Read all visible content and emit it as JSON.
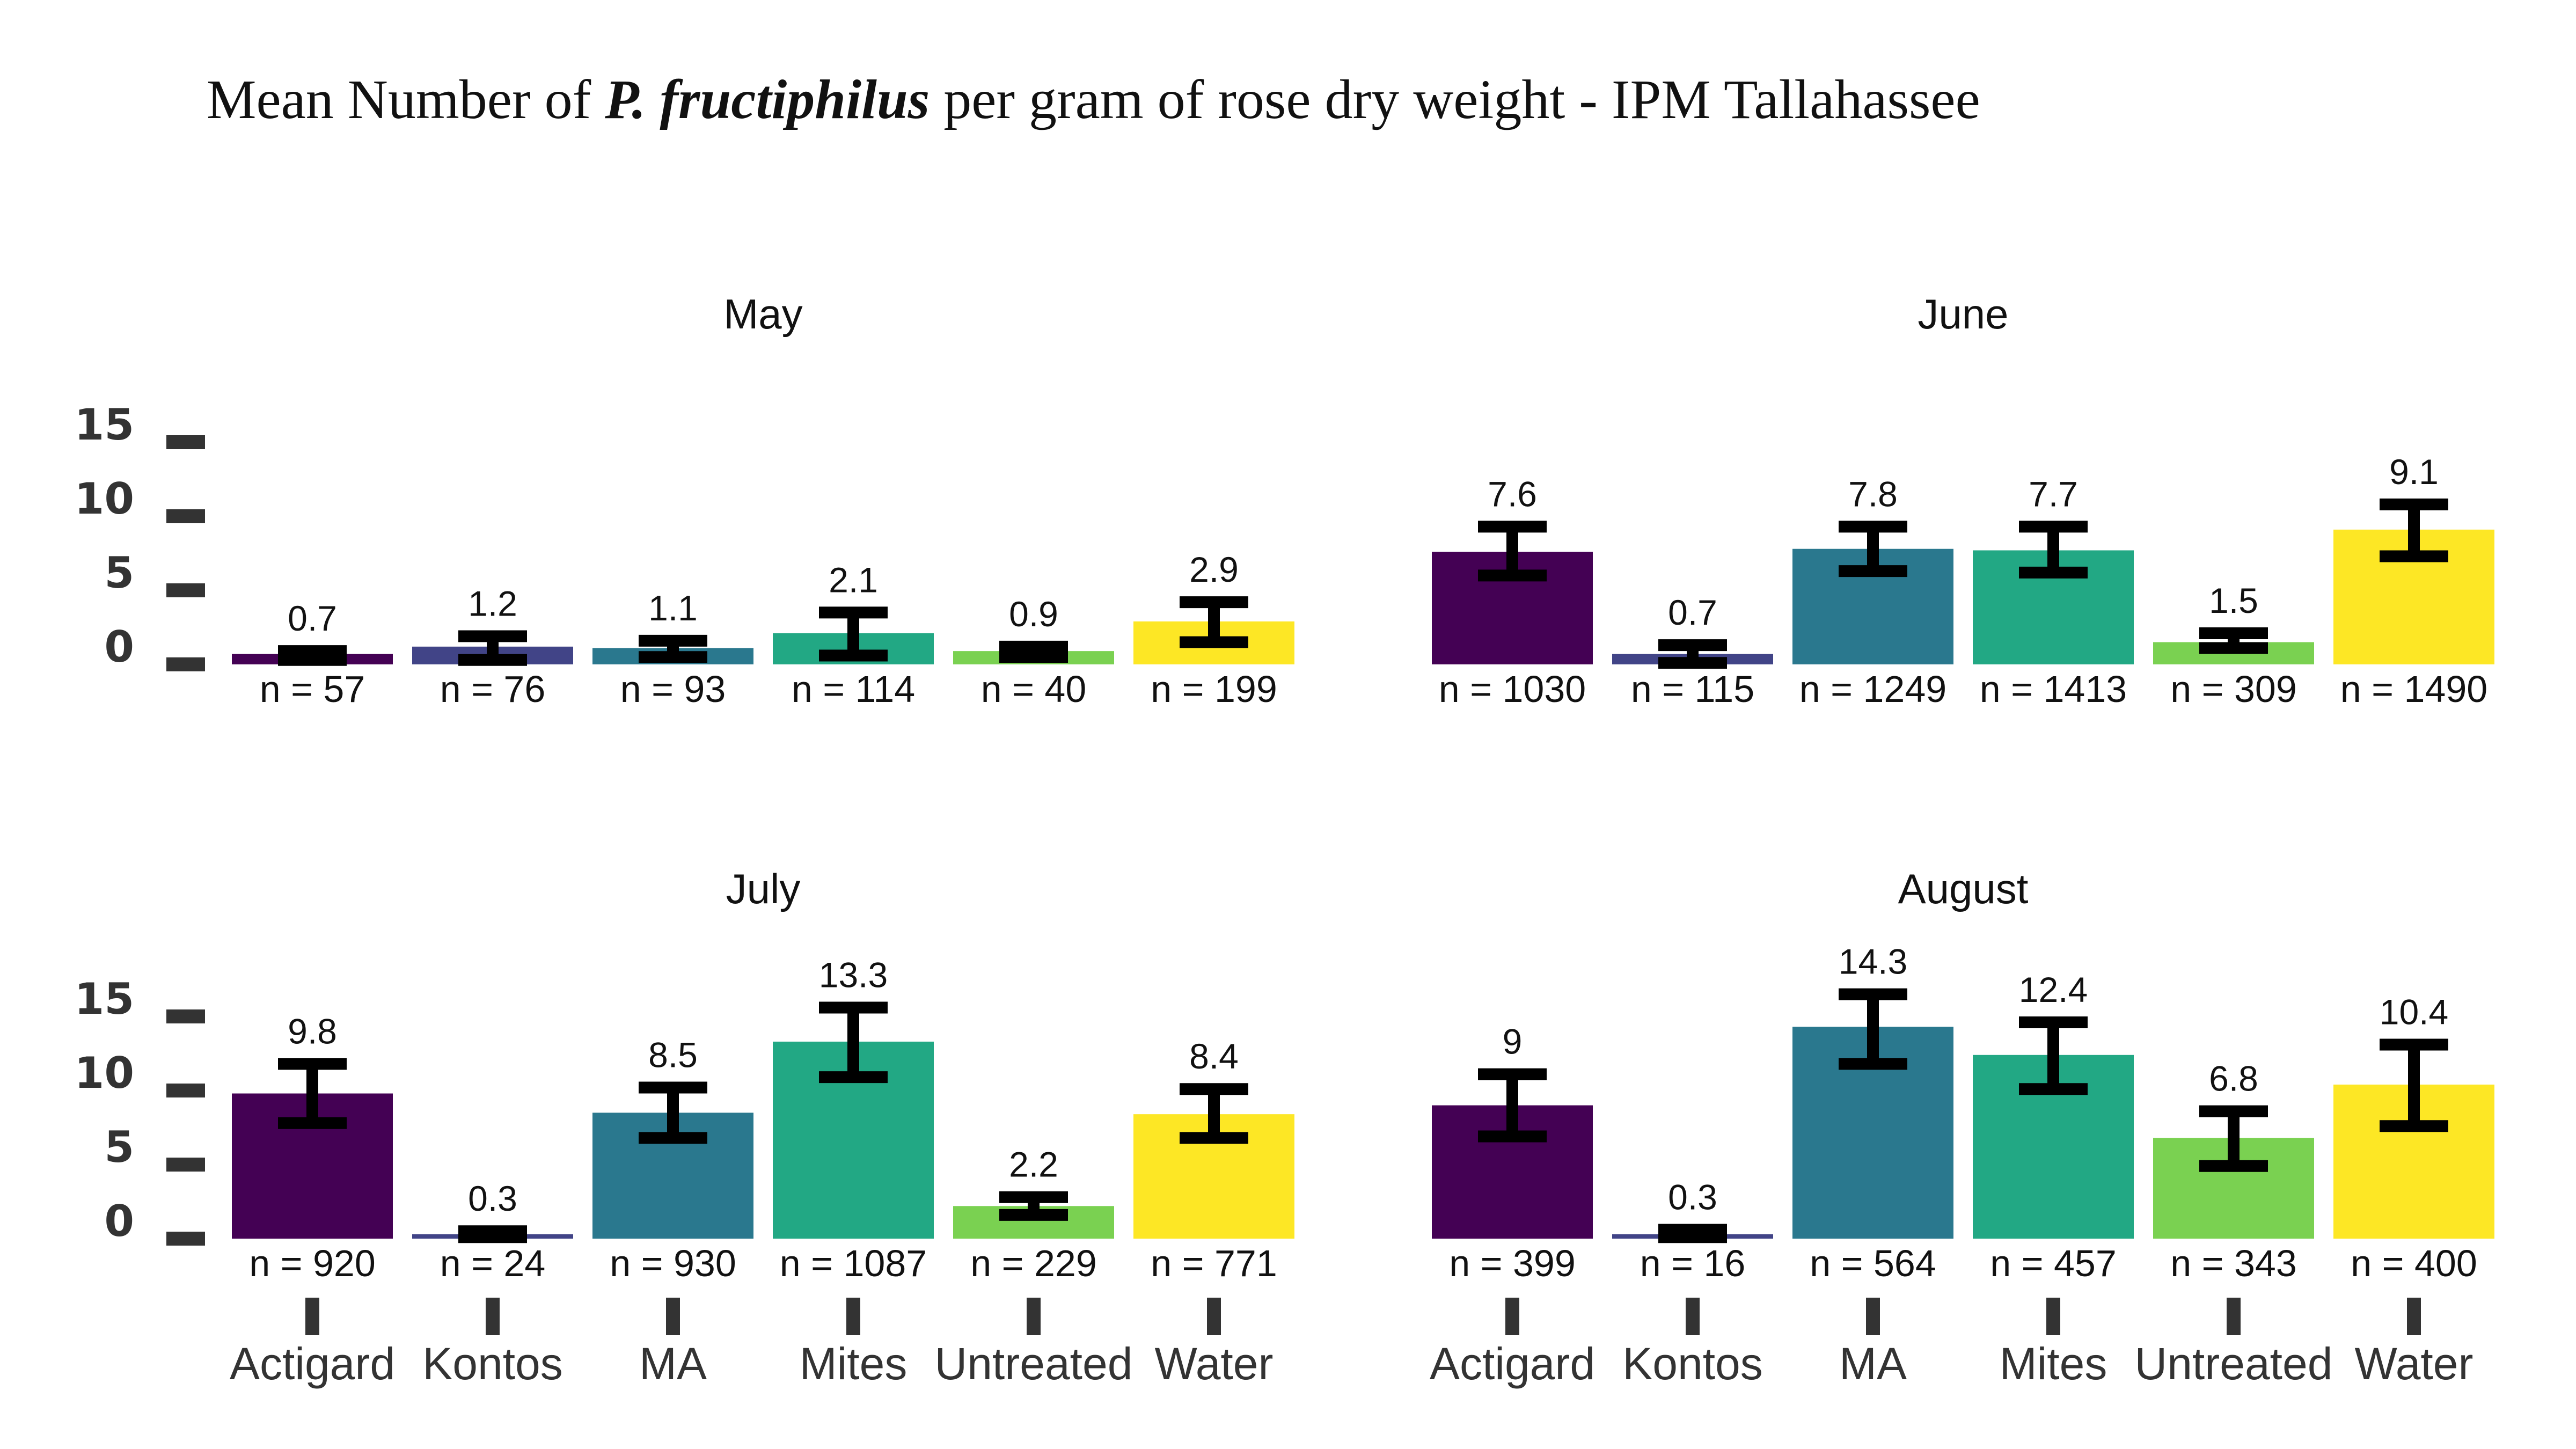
{
  "title": {
    "prefix": "Mean Number of ",
    "species": "P. fructiphilus",
    "suffix": " per gram of rose dry weight - IPM Tallahassee"
  },
  "colors": {
    "Actigard": "#440154",
    "Kontos": "#414487",
    "MA": "#2A788E",
    "Mites": "#22A884",
    "Untreated": "#7AD151",
    "Water": "#FDE725",
    "errorbar": "#000000",
    "tick": "#333333"
  },
  "chart_data": {
    "type": "bar",
    "categories": [
      "Actigard",
      "Kontos",
      "MA",
      "Mites",
      "Untreated",
      "Water"
    ],
    "ylim": [
      0,
      15
    ],
    "yticks": [
      "0",
      "5",
      "10",
      "15"
    ],
    "grid": false,
    "legend": "none",
    "panels": [
      {
        "title": "May",
        "values": [
          0.7,
          1.2,
          1.1,
          2.1,
          0.9,
          2.9
        ],
        "labels": [
          "0.7",
          "1.2",
          "1.1",
          "2.1",
          "0.9",
          "2.9"
        ],
        "err_low": [
          0.3,
          0.3,
          0.5,
          0.6,
          0.5,
          1.5
        ],
        "err_high": [
          0.9,
          1.9,
          1.6,
          3.5,
          1.2,
          4.2
        ],
        "n": [
          "n = 57",
          "n = 76",
          "n = 93",
          "n = 114",
          "n = 40",
          "n = 199"
        ]
      },
      {
        "title": "June",
        "values": [
          7.6,
          0.7,
          7.8,
          7.7,
          1.5,
          9.1
        ],
        "labels": [
          "7.6",
          "0.7",
          "7.8",
          "7.7",
          "1.5",
          "9.1"
        ],
        "err_low": [
          6.0,
          0.1,
          6.3,
          6.2,
          1.1,
          7.3
        ],
        "err_high": [
          9.3,
          1.3,
          9.3,
          9.3,
          2.1,
          10.8
        ],
        "n": [
          "n = 1030",
          "n = 115",
          "n = 1249",
          "n = 1413",
          "n = 309",
          "n = 1490"
        ]
      },
      {
        "title": "July",
        "values": [
          9.8,
          0.3,
          8.5,
          13.3,
          2.2,
          8.4
        ],
        "labels": [
          "9.8",
          "0.3",
          "8.5",
          "13.3",
          "2.2",
          "8.4"
        ],
        "err_low": [
          7.8,
          0.1,
          6.8,
          10.9,
          1.6,
          6.8
        ],
        "err_high": [
          11.8,
          0.5,
          10.2,
          15.6,
          2.8,
          10.1
        ],
        "n": [
          "n = 920",
          "n = 24",
          "n = 930",
          "n = 1087",
          "n = 229",
          "n = 771"
        ]
      },
      {
        "title": "August",
        "values": [
          9,
          0.3,
          14.3,
          12.4,
          6.8,
          10.4
        ],
        "labels": [
          "9",
          "0.3",
          "14.3",
          "12.4",
          "6.8",
          "10.4"
        ],
        "err_low": [
          6.9,
          0.1,
          11.8,
          10.1,
          4.9,
          7.6
        ],
        "err_high": [
          11.1,
          0.6,
          16.5,
          14.6,
          8.6,
          13.1
        ],
        "n": [
          "n = 399",
          "n = 16",
          "n = 564",
          "n = 457",
          "n = 343",
          "n = 400"
        ]
      }
    ]
  }
}
